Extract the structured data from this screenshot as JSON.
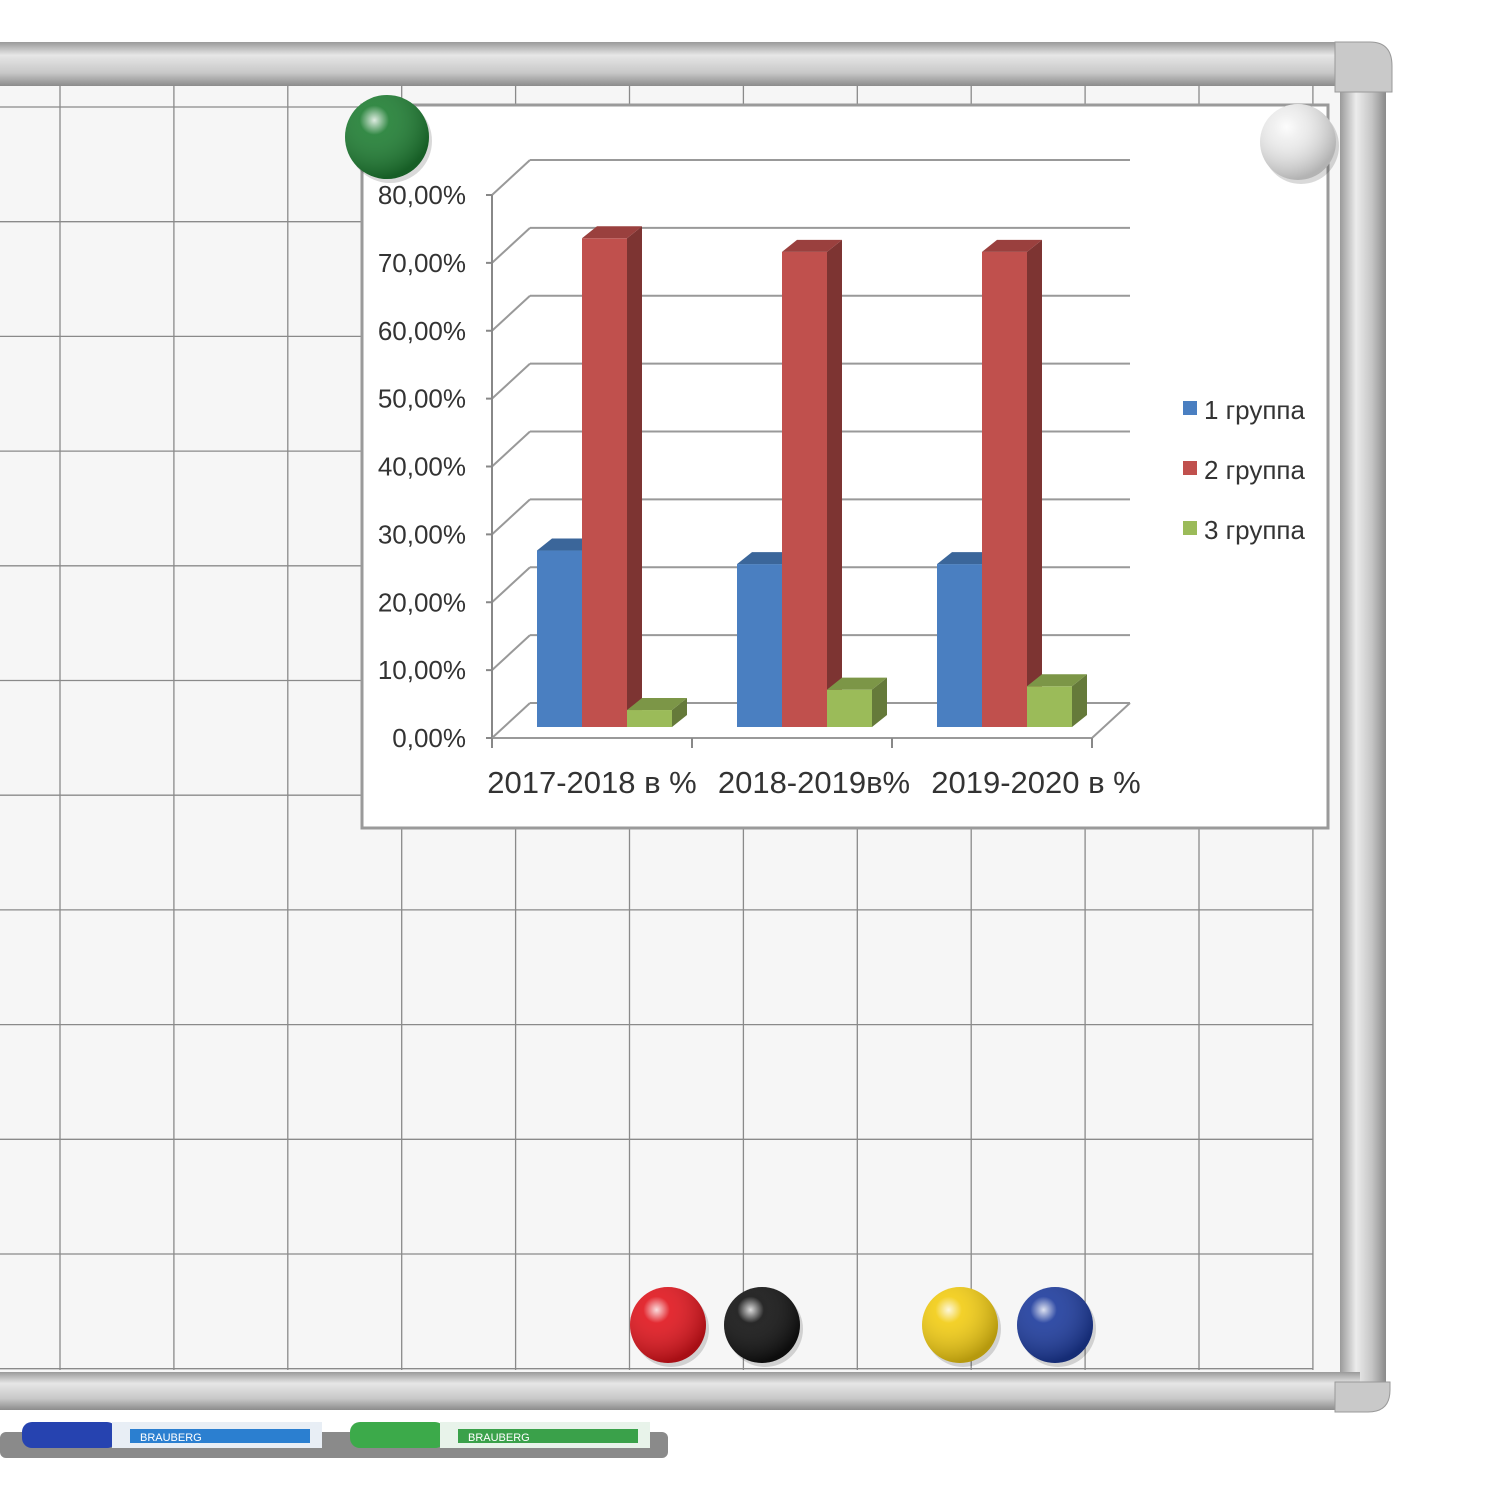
{
  "board": {
    "marker_brand": "BRAUBERG",
    "marker_type": "whiteboard marker",
    "magnet_colors": [
      "#1e7d32",
      "#eeeeee",
      "#e0141c",
      "#111111",
      "#f2cc12",
      "#1c3a9c"
    ],
    "marker_colors": [
      "#2643b0",
      "#3caa4a"
    ]
  },
  "chart_data": {
    "type": "bar",
    "style": "3d-clustered-column",
    "categories": [
      "2017-2018 в %",
      "2018-2019в%",
      "2019-2020 в %"
    ],
    "series": [
      {
        "name": "1 группа",
        "values": [
          26,
          24,
          24
        ],
        "color": "#4a7fc1"
      },
      {
        "name": "2 группа",
        "values": [
          72,
          70,
          70
        ],
        "color": "#c0504d"
      },
      {
        "name": "3 группа",
        "values": [
          2.5,
          5.5,
          6
        ],
        "color": "#9bbb59"
      }
    ],
    "y_ticks": [
      "0,00%",
      "10,00%",
      "20,00%",
      "30,00%",
      "40,00%",
      "50,00%",
      "60,00%",
      "70,00%",
      "80,00%"
    ],
    "ylim": [
      0,
      80
    ],
    "unit": "%",
    "grid": true,
    "legend": "right"
  }
}
